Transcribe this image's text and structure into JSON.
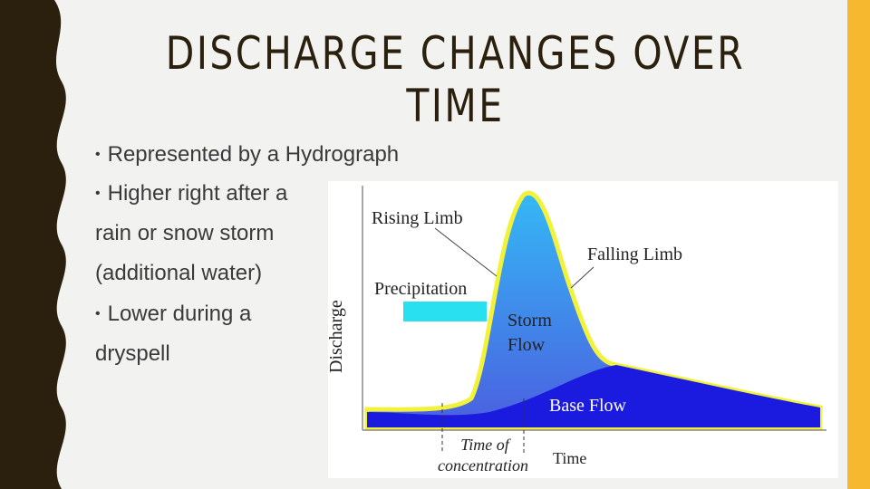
{
  "header": {
    "title": "DISCHARGE CHANGES OVER TIME"
  },
  "bullets": [
    {
      "lines": [
        "Represented by a Hydrograph"
      ]
    },
    {
      "lines": [
        "Higher right after a",
        "rain or snow storm",
        "(additional water)"
      ]
    },
    {
      "lines": [
        "Lower during a",
        "dryspell"
      ]
    }
  ],
  "diagram": {
    "y_axis_label": "Discharge",
    "x_axis_label": "Time",
    "labels": {
      "rising_limb": "Rising Limb",
      "falling_limb": "Falling Limb",
      "precipitation": "Precipitation",
      "storm_flow": [
        "Storm",
        "Flow"
      ],
      "base_flow": "Base Flow",
      "time_of_concentration": [
        "Time of",
        "concentration"
      ]
    }
  }
}
